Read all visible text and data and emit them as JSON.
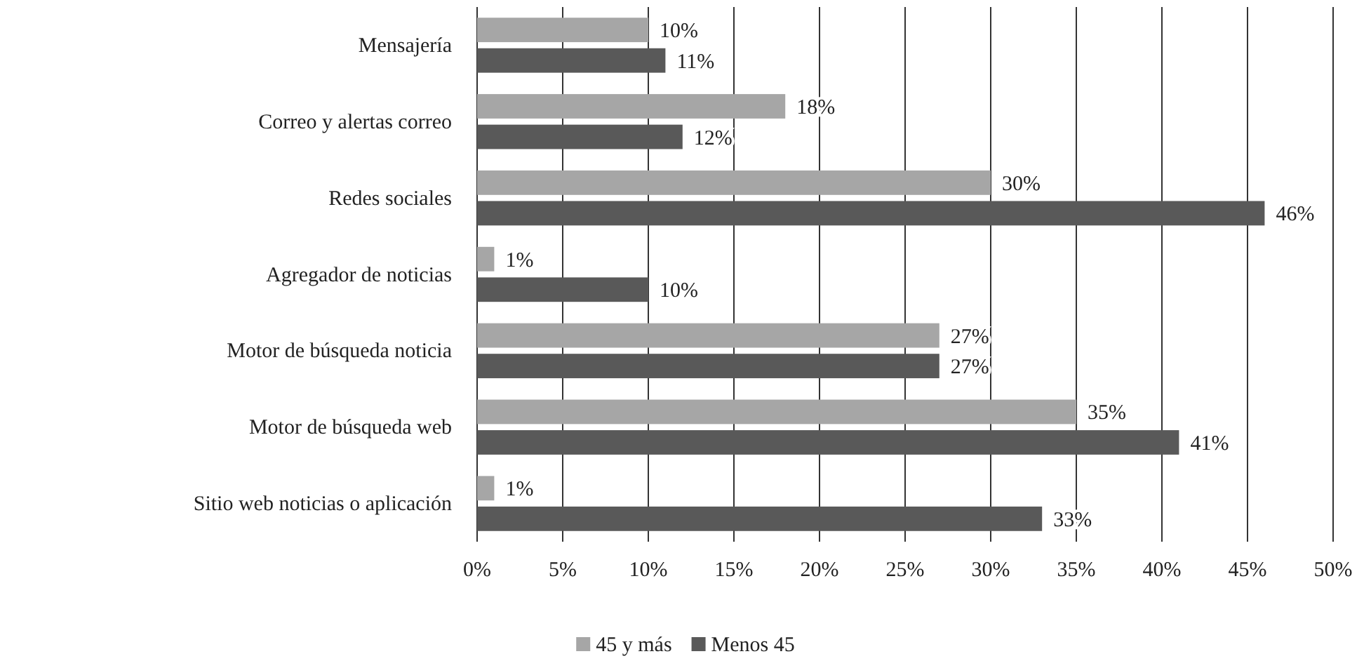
{
  "chart_data": {
    "type": "bar",
    "orientation": "horizontal",
    "categories": [
      "Mensajería",
      "Correo y alertas correo",
      "Redes sociales",
      "Agregador de noticias",
      "Motor de búsqueda noticia",
      "Motor de búsqueda web",
      "Sitio web noticias o aplicación"
    ],
    "series": [
      {
        "name": "45 y más",
        "color": "#a6a6a6",
        "values": [
          10,
          18,
          30,
          1,
          27,
          35,
          1
        ],
        "value_labels": [
          "10%",
          "18%",
          "30%",
          "1%",
          "27%",
          "35%",
          "1%"
        ]
      },
      {
        "name": "Menos 45",
        "color": "#595959",
        "values": [
          11,
          12,
          46,
          10,
          27,
          41,
          33
        ],
        "value_labels": [
          "11%",
          "12%",
          "46%",
          "10%",
          "27%",
          "41%",
          "33%"
        ]
      }
    ],
    "xlim": [
      0,
      50
    ],
    "xticks": [
      {
        "value": 0,
        "label": "0%"
      },
      {
        "value": 5,
        "label": "5%"
      },
      {
        "value": 10,
        "label": "10%"
      },
      {
        "value": 15,
        "label": "15%"
      },
      {
        "value": 20,
        "label": "20%"
      },
      {
        "value": 25,
        "label": "25%"
      },
      {
        "value": 30,
        "label": "30%"
      },
      {
        "value": 35,
        "label": "35%"
      },
      {
        "value": 40,
        "label": "40%"
      },
      {
        "value": 45,
        "label": "45%"
      },
      {
        "value": 50,
        "label": "50%"
      }
    ],
    "grid": "x",
    "legend": "bottom"
  }
}
